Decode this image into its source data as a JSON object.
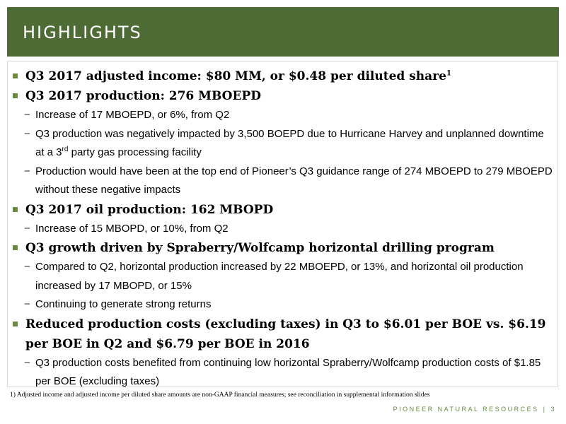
{
  "header": {
    "title": "HIGHLIGHTS"
  },
  "items": [
    {
      "text": "Q3 2017 adjusted income: $80 MM, or $0.48 per diluted share",
      "sup": "1"
    },
    {
      "text": "Q3 2017 production: 276 MBOEPD"
    },
    {
      "text": "Increase of 17 MBOEPD, or 6%, from Q2"
    },
    {
      "text_a": "Q3 production was negatively impacted by 3,500 BOEPD due to Hurricane Harvey and unplanned downtime at a 3",
      "sup": "rd",
      "text_b": " party gas processing facility"
    },
    {
      "text": "Production would have been at the top end of Pioneer’s Q3 guidance range of 274 MBOEPD to 279 MBOEPD without these negative impacts"
    },
    {
      "text": "Q3 2017 oil production:  162 MBOPD"
    },
    {
      "text": "Increase of 15 MBOPD, or 10%, from Q2"
    },
    {
      "text": "Q3 growth driven by Spraberry/Wolfcamp horizontal drilling program"
    },
    {
      "text": "Compared to Q2, horizontal production increased by 22 MBOEPD, or 13%, and horizontal oil production increased by 17 MBOPD, or 15%"
    },
    {
      "text": "Continuing to generate strong returns"
    },
    {
      "text": "Reduced production costs (excluding taxes) in Q3 to $6.01 per BOE vs. $6.19 per BOE in Q2 and $6.79 per BOE in 2016"
    },
    {
      "text": "Q3 production costs benefited from continuing low horizontal Spraberry/Wolfcamp production costs of $1.85 per BOE (excluding taxes)"
    }
  ],
  "footnote": "1)   Adjusted income and adjusted income per diluted share amounts are non-GAAP financial measures; see reconciliation in supplemental information slides",
  "footer": {
    "company": "PIONEER NATURAL RESOURCES",
    "separator": "|",
    "page": "3"
  },
  "colors": {
    "header_bg": "#4f6b35",
    "accent": "#6a8a3f"
  }
}
